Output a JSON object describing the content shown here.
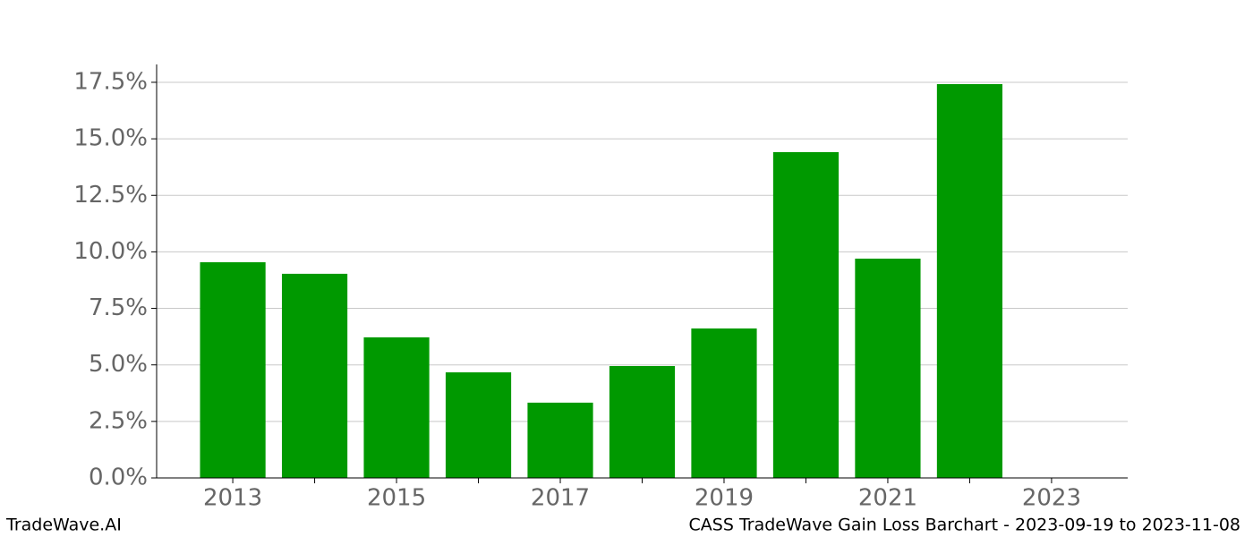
{
  "chart_data": {
    "type": "bar",
    "x": [
      2013,
      2014,
      2015,
      2016,
      2017,
      2018,
      2019,
      2020,
      2021,
      2022
    ],
    "values": [
      9.54,
      9.03,
      6.22,
      4.67,
      3.33,
      4.95,
      6.61,
      14.41,
      9.7,
      17.42
    ],
    "color": "#009900",
    "bar_width": 0.8,
    "xlim": [
      2012.07,
      2023.93
    ],
    "xticks": [
      2013,
      2015,
      2017,
      2019,
      2021,
      2023
    ],
    "xminorticks": [
      2014,
      2016,
      2018,
      2020,
      2022
    ],
    "ylim": [
      0,
      18.29
    ],
    "yticks": [
      {
        "value": 0,
        "label": "0.0%"
      },
      {
        "value": 2.5,
        "label": "2.5%"
      },
      {
        "value": 5,
        "label": "5.0%"
      },
      {
        "value": 7.5,
        "label": "7.5%"
      },
      {
        "value": 10,
        "label": "10.0%"
      },
      {
        "value": 12.5,
        "label": "12.5%"
      },
      {
        "value": 15,
        "label": "15.0%"
      },
      {
        "value": 17.5,
        "label": "17.5%"
      }
    ],
    "grid": true,
    "footer_left": "TradeWave.AI",
    "footer_right": "CASS TradeWave Gain Loss Barchart - 2023-09-19 to 2023-11-08"
  }
}
